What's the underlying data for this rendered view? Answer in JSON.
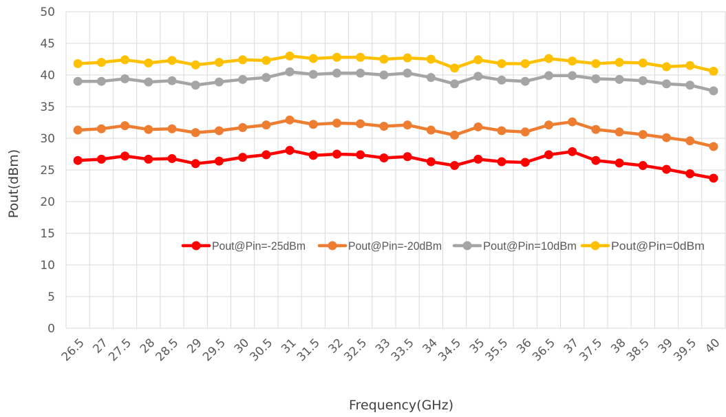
{
  "chart_data": {
    "type": "line",
    "title": "",
    "xlabel": "Frequency(GHz)",
    "ylabel": "Pout(dBm)",
    "ylim": [
      0,
      50
    ],
    "yticks": [
      0,
      5,
      10,
      15,
      20,
      25,
      30,
      35,
      40,
      45,
      50
    ],
    "grid": true,
    "legend_position": "inside, lower-middle",
    "categories": [
      "26.5",
      "27",
      "27.5",
      "28",
      "28.5",
      "29",
      "29.5",
      "30",
      "30.5",
      "31",
      "31.5",
      "32",
      "32.5",
      "33",
      "33.5",
      "34",
      "34.5",
      "35",
      "35.5",
      "36",
      "36.5",
      "37",
      "37.5",
      "38",
      "38.5",
      "39",
      "39.5",
      "40"
    ],
    "series": [
      {
        "name": "Pout@Pin=-25dBm",
        "color": "#ff0000",
        "values": [
          26.5,
          26.7,
          27.2,
          26.7,
          26.8,
          26.0,
          26.4,
          27.0,
          27.4,
          28.1,
          27.3,
          27.5,
          27.4,
          26.9,
          27.1,
          26.3,
          25.7,
          26.7,
          26.3,
          26.2,
          27.4,
          27.9,
          26.5,
          26.1,
          25.7,
          25.1,
          24.4,
          23.7
        ]
      },
      {
        "name": "Pout@Pin=-20dBm",
        "color": "#ed7d31",
        "values": [
          31.3,
          31.5,
          32.0,
          31.4,
          31.5,
          30.9,
          31.2,
          31.7,
          32.1,
          32.9,
          32.2,
          32.4,
          32.3,
          31.9,
          32.1,
          31.3,
          30.5,
          31.8,
          31.2,
          31.0,
          32.1,
          32.6,
          31.4,
          31.0,
          30.6,
          30.1,
          29.6,
          28.7
        ]
      },
      {
        "name": "Pout@Pin=10dBm",
        "color": "#a5a5a5",
        "values": [
          39.0,
          39.0,
          39.4,
          38.9,
          39.1,
          38.4,
          38.9,
          39.3,
          39.6,
          40.5,
          40.1,
          40.3,
          40.3,
          40.0,
          40.3,
          39.6,
          38.6,
          39.8,
          39.2,
          39.0,
          39.9,
          39.9,
          39.4,
          39.3,
          39.1,
          38.6,
          38.4,
          37.5
        ]
      },
      {
        "name": "Pout@Pin=0dBm",
        "color": "#ffc000",
        "values": [
          41.8,
          42.0,
          42.4,
          41.9,
          42.3,
          41.6,
          42.0,
          42.4,
          42.3,
          43.0,
          42.6,
          42.8,
          42.8,
          42.5,
          42.7,
          42.5,
          41.1,
          42.4,
          41.8,
          41.8,
          42.6,
          42.2,
          41.8,
          42.0,
          41.9,
          41.3,
          41.5,
          40.6
        ]
      }
    ]
  }
}
